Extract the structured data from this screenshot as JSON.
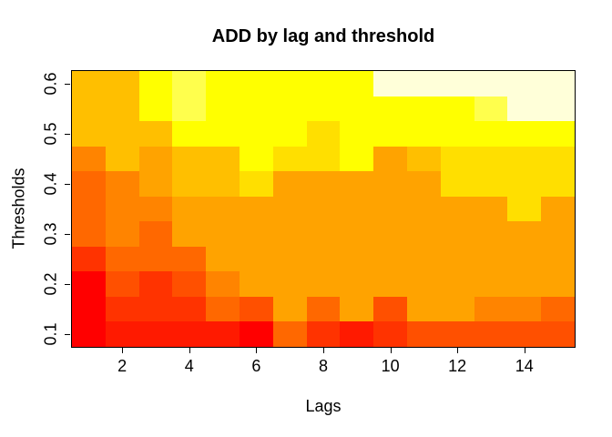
{
  "title": "ADD by lag and threshold",
  "x_axis": {
    "label": "Lags",
    "tick_labels": [
      "2",
      "4",
      "6",
      "8",
      "10",
      "12",
      "14"
    ],
    "tick_values": [
      2,
      4,
      6,
      8,
      10,
      12,
      14
    ]
  },
  "y_axis": {
    "label": "Thresholds",
    "tick_labels": [
      "0.1",
      "0.2",
      "0.3",
      "0.4",
      "0.5",
      "0.6"
    ],
    "tick_values": [
      0.1,
      0.2,
      0.3,
      0.4,
      0.5,
      0.6
    ]
  },
  "colors": {
    "background": "#FFFFFF",
    "frame": "#000000",
    "text": "#000000"
  },
  "chart_data": {
    "type": "heatmap",
    "title": "ADD by lag and threshold",
    "xlabel": "Lags",
    "ylabel": "Thresholds",
    "x_values": [
      1,
      2,
      3,
      4,
      5,
      6,
      7,
      8,
      9,
      10,
      11,
      12,
      13,
      14,
      15
    ],
    "y_values_top_to_bottom": [
      0.6,
      0.55,
      0.5,
      0.45,
      0.4,
      0.35,
      0.3,
      0.25,
      0.2,
      0.15,
      0.1
    ],
    "xlim": [
      0.5,
      15.5
    ],
    "ylim": [
      0.075,
      0.625
    ],
    "grid": false,
    "legend": false,
    "palette_note": "heat.colors-style ramp; index 0 = lowest/red, 11 = highest/pale cream",
    "palette": [
      "#FF0000",
      "#FF1A00",
      "#FF3300",
      "#FF5000",
      "#FF6800",
      "#FF8400",
      "#FFA300",
      "#FFBF00",
      "#FFDF00",
      "#FFFF00",
      "#FFFF4D",
      "#FFFFD9"
    ],
    "z_palette_index_rows_top_to_bottom": [
      [
        7,
        7,
        9,
        10,
        9,
        9,
        9,
        9,
        9,
        11,
        11,
        11,
        11,
        11,
        11
      ],
      [
        7,
        7,
        9,
        10,
        9,
        9,
        9,
        9,
        9,
        9,
        9,
        9,
        10,
        11,
        11
      ],
      [
        7,
        7,
        7,
        9,
        9,
        9,
        9,
        8,
        9,
        9,
        9,
        9,
        9,
        9,
        9
      ],
      [
        5,
        7,
        6,
        7,
        7,
        9,
        8,
        8,
        9,
        6,
        7,
        8,
        8,
        8,
        8
      ],
      [
        4,
        5,
        6,
        7,
        7,
        8,
        6,
        6,
        6,
        6,
        6,
        8,
        8,
        8,
        8
      ],
      [
        4,
        5,
        5,
        6,
        6,
        6,
        6,
        6,
        6,
        6,
        6,
        6,
        6,
        8,
        6
      ],
      [
        4,
        5,
        4,
        6,
        6,
        6,
        6,
        6,
        6,
        6,
        6,
        6,
        6,
        6,
        6
      ],
      [
        2,
        4,
        4,
        4,
        6,
        6,
        6,
        6,
        6,
        6,
        6,
        6,
        6,
        6,
        6
      ],
      [
        0,
        3,
        2,
        3,
        5,
        6,
        6,
        6,
        6,
        6,
        6,
        6,
        6,
        6,
        6
      ],
      [
        0,
        2,
        2,
        2,
        4,
        3,
        6,
        4,
        6,
        3,
        6,
        6,
        5,
        5,
        4
      ],
      [
        0,
        1,
        1,
        1,
        1,
        0,
        4,
        2,
        1,
        2,
        3,
        3,
        3,
        3,
        3
      ]
    ]
  }
}
